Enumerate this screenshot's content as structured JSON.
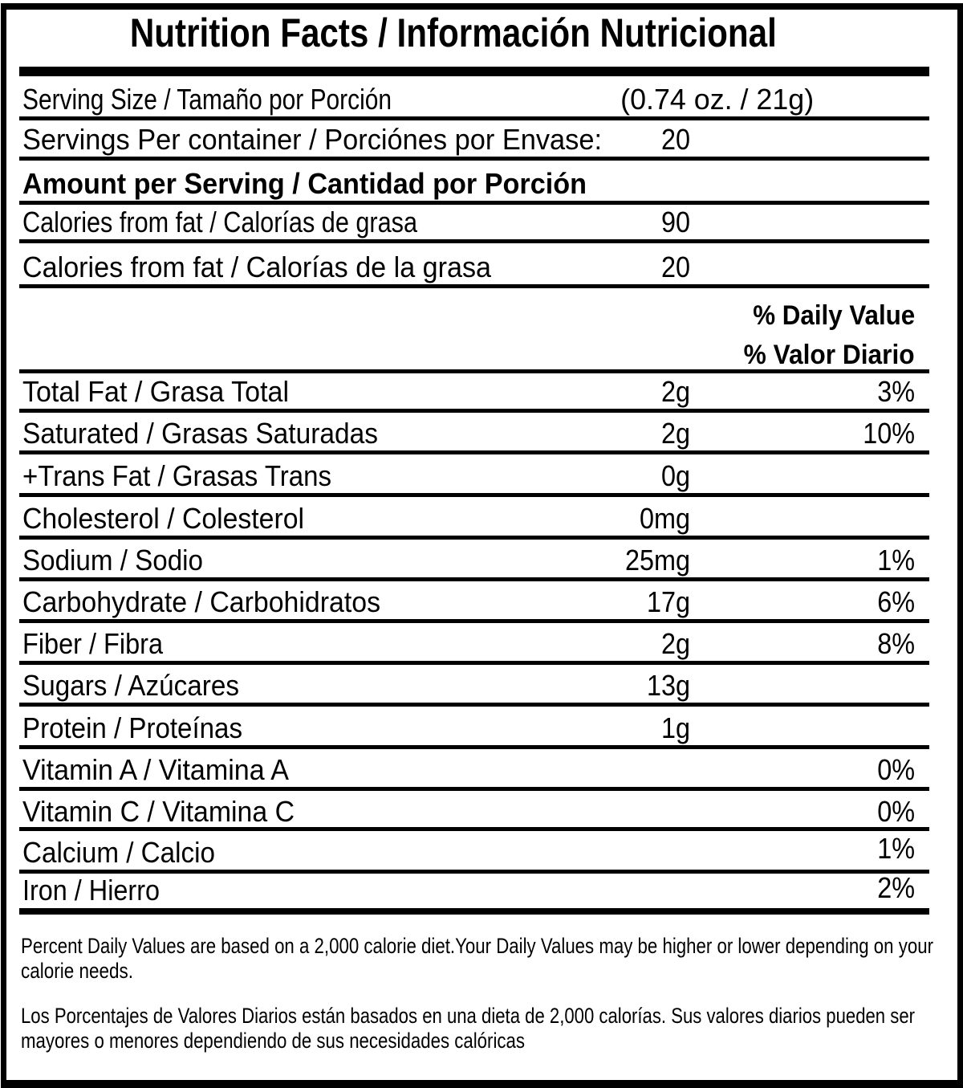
{
  "title": "Nutrition Facts / Información Nutricional",
  "serving": {
    "size_label": "Serving Size / Tamaño por Porción",
    "size_value": "(0.74 oz. / 21g)",
    "per_container_label": "Servings Per container / Porciónes por Envase:",
    "per_container_value": "20"
  },
  "amount_header": "Amount per Serving / Cantidad por Porción",
  "calories": [
    {
      "label": "Calories from fat / Calorías de grasa",
      "value": "90"
    },
    {
      "label": "Calories from fat / Calorías de la grasa",
      "value": "20"
    }
  ],
  "daily_value_header_en": "% Daily Value",
  "daily_value_header_es": "% Valor Diario",
  "nutrients": [
    {
      "label": "Total Fat / Grasa Total",
      "amount": "2g",
      "dv": "3%"
    },
    {
      "label": "Saturated / Grasas Saturadas",
      "amount": "2g",
      "dv": "10%"
    },
    {
      "label": "+Trans Fat / Grasas Trans",
      "amount": "0g",
      "dv": ""
    },
    {
      "label": "Cholesterol / Colesterol",
      "amount": "0mg",
      "dv": ""
    },
    {
      "label": "Sodium / Sodio",
      "amount": "25mg",
      "dv": "1%"
    },
    {
      "label": "Carbohydrate / Carbohidratos",
      "amount": "17g",
      "dv": "6%"
    },
    {
      "label": "Fiber / Fibra",
      "amount": "2g",
      "dv": "8%"
    },
    {
      "label": "Sugars / Azúcares",
      "amount": "13g",
      "dv": ""
    },
    {
      "label": "Protein / Proteínas",
      "amount": "1g",
      "dv": ""
    },
    {
      "label": "Vitamin A / Vitamina A",
      "amount": "",
      "dv": "0%"
    },
    {
      "label": "Vitamin C / Vitamina C",
      "amount": "",
      "dv": "0%"
    },
    {
      "label": "Calcium / Calcio",
      "amount": "",
      "dv": "1%"
    },
    {
      "label": "Iron / Hierro",
      "amount": "",
      "dv": "2%"
    }
  ],
  "footnote_en": [
    "Percent Daily Values are based on a 2,000 calorie diet.Your Daily Values may be higher or lower depending on your",
    "calorie needs."
  ],
  "footnote_es": [
    "Los Porcentajes de Valores Diarios están basados en una dieta de 2,000 calorías. Sus valores diarios pueden ser",
    "mayores o menores dependiendo de sus necesidades calóricas"
  ]
}
